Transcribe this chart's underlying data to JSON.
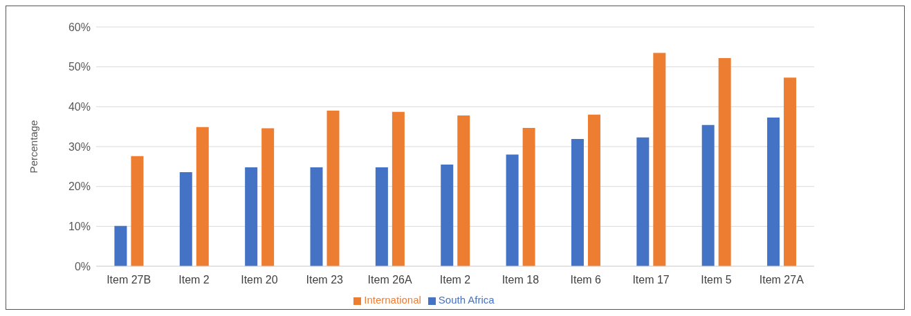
{
  "chart_data": {
    "type": "bar",
    "ylabel": "Percentage",
    "categories": [
      "Item 27B",
      "Item 2",
      "Item 20",
      "Item 23",
      "Item 26A",
      "Item 2",
      "Item 18",
      "Item 6",
      "Item 17",
      "Item 5",
      "Item 27A"
    ],
    "series": [
      {
        "name": "South Africa",
        "color": "#4472c4",
        "values": [
          10.1,
          23.6,
          24.8,
          24.8,
          24.8,
          25.5,
          28.0,
          31.9,
          32.3,
          35.4,
          37.3
        ]
      },
      {
        "name": "International",
        "color": "#ed7d31",
        "values": [
          27.6,
          34.9,
          34.6,
          39.0,
          38.7,
          37.8,
          34.7,
          38.0,
          53.5,
          52.2,
          47.3
        ]
      }
    ],
    "ylim": [
      0,
      60
    ],
    "yticks": [
      {
        "value": 0,
        "label": "0%"
      },
      {
        "value": 10,
        "label": "10%"
      },
      {
        "value": 20,
        "label": "20%"
      },
      {
        "value": 30,
        "label": "30%"
      },
      {
        "value": 40,
        "label": "40%"
      },
      {
        "value": 50,
        "label": "50%"
      },
      {
        "value": 60,
        "label": "60%"
      }
    ],
    "grid": "y",
    "legend": "bottom"
  }
}
